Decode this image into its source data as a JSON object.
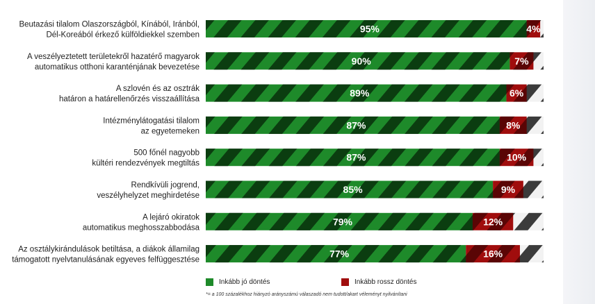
{
  "colors": {
    "good": "#1e8a2a",
    "good_stripe": "#0b3d10",
    "bad": "#a00d0d",
    "bad_stripe": "#5a0505",
    "rest": "#f2f2f2",
    "rest_stripe": "#3b3b3b"
  },
  "chart_data": {
    "type": "bar",
    "orientation": "horizontal",
    "stacked": true,
    "categories": [
      "Beutazási tilalom Olaszországból, Kínából, Iránból, Dél-Koreából érkező külföldiekkel szemben",
      "A veszélyeztetett területekről hazatérő magyarok automatikus otthoni karanténjának bevezetése",
      "A szlovén és az osztrák határon a határellenőrzés visszaállítása",
      "Intézménylátogatási tilalom az egyetemeken",
      "500 főnél nagyobb kültéri rendezvények megtiltás",
      "Rendkívüli jogrend, veszélyhelyzet meghirdetése",
      "A lejáró okiratok automatikus meghosszabbodása",
      "Az osztálykirándulások betiltása, a diákok államilag támogatott nyelvtanulásának egyeves felfüggesztése"
    ],
    "series": [
      {
        "name": "Inkább jó döntés",
        "values": [
          95,
          90,
          89,
          87,
          87,
          85,
          79,
          77
        ]
      },
      {
        "name": "Inkább rossz döntés",
        "values": [
          4,
          7,
          6,
          8,
          10,
          9,
          12,
          16
        ]
      }
    ],
    "value_labels": {
      "good": [
        "95%",
        "90%",
        "89%",
        "87%",
        "87%",
        "85%",
        "79%",
        "77%"
      ],
      "bad": [
        "4%",
        "7%",
        "6%",
        "8%",
        "10%",
        "9%",
        "12%",
        "16%"
      ]
    },
    "xlim": [
      0,
      100
    ],
    "legend_position": "bottom"
  },
  "row_label_lines": [
    [
      "Beutazási tilalom Olaszországból, Kínából, Iránból,",
      "Dél-Koreából érkező külföldiekkel szemben"
    ],
    [
      "A veszélyeztetett területekről hazatérő magyarok",
      "automatikus otthoni karanténjának bevezetése"
    ],
    [
      "A szlovén és az osztrák",
      "határon a határellenőrzés visszaállítása"
    ],
    [
      "Intézménylátogatási tilalom",
      "az egyetemeken"
    ],
    [
      "500 főnél nagyobb",
      "kültéri rendezvények megtiltás"
    ],
    [
      "Rendkívüli jogrend,",
      "veszélyhelyzet meghirdetése"
    ],
    [
      "A lejáró okiratok",
      "automatikus meghosszabbodása"
    ],
    [
      "Az osztálykirándulások betiltása, a diákok államilag",
      "támogatott nyelvtanulásának egyeves felfüggesztése"
    ]
  ],
  "legend": {
    "good_label": "Inkább jó döntés",
    "bad_label": "Inkább rossz döntés"
  },
  "footnote": "*= a 100 százalékhoz hiányzó arányszámú válaszadó nem tudott/akart véleményt nyilvánítani"
}
